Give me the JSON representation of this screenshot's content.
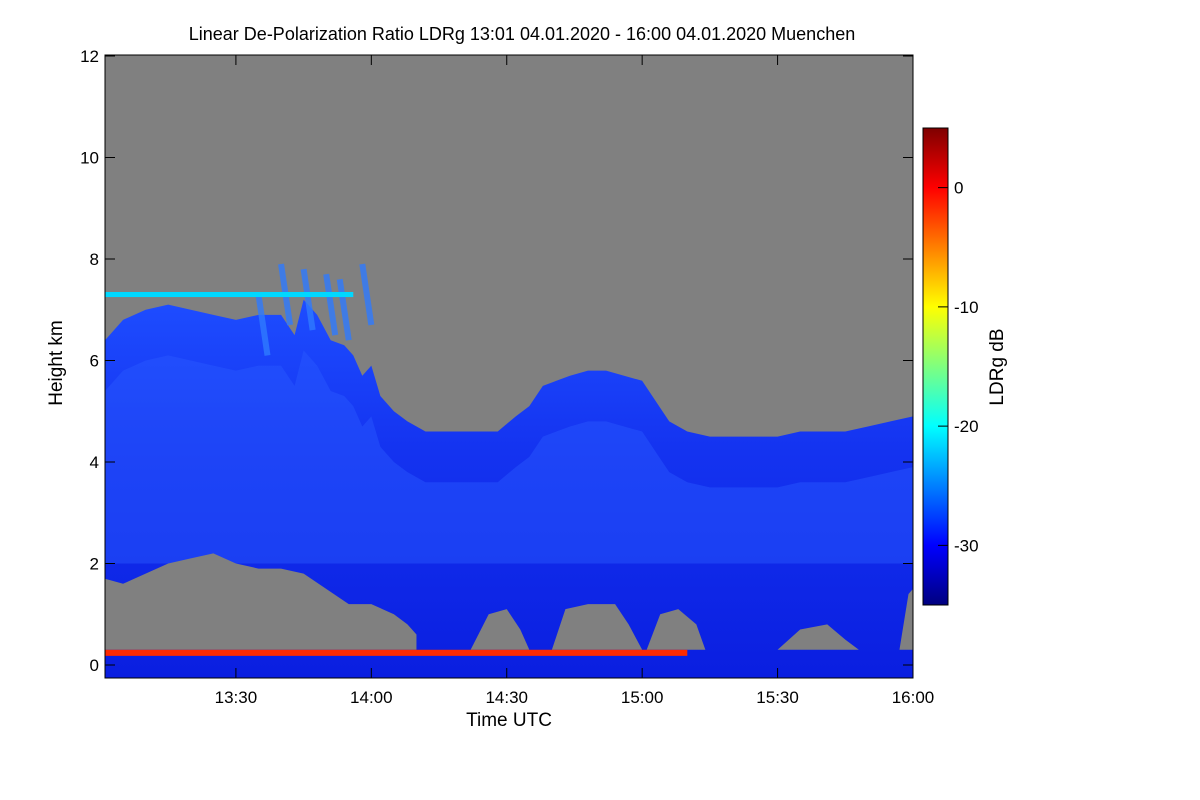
{
  "chart_data": {
    "type": "heatmap",
    "title": "Linear De-Polarization Ratio LDRg   13:01 04.01.2020 - 16:00 04.01.2020 Muenchen",
    "xlabel": "Time UTC",
    "ylabel": "Height km",
    "x_range_minutes_utc": [
      781,
      960
    ],
    "y_range_km": [
      0,
      12
    ],
    "x_ticks": [
      {
        "minute": 810,
        "label": "13:30"
      },
      {
        "minute": 840,
        "label": "14:00"
      },
      {
        "minute": 870,
        "label": "14:30"
      },
      {
        "minute": 900,
        "label": "15:00"
      },
      {
        "minute": 930,
        "label": "15:30"
      },
      {
        "minute": 960,
        "label": "16:00"
      }
    ],
    "y_ticks": [
      0,
      2,
      4,
      6,
      8,
      10,
      12
    ],
    "colorbar": {
      "label": "LDRg dB",
      "range": [
        -35,
        5
      ],
      "ticks": [
        -30,
        -20,
        -10,
        0
      ],
      "colormap": "jet"
    },
    "no_signal_color": "#808080",
    "background_color": "#808080",
    "signal_top_km": [
      [
        781,
        6.4
      ],
      [
        785,
        6.8
      ],
      [
        790,
        7.0
      ],
      [
        795,
        7.1
      ],
      [
        800,
        7.0
      ],
      [
        805,
        6.9
      ],
      [
        810,
        6.8
      ],
      [
        815,
        6.9
      ],
      [
        820,
        6.9
      ],
      [
        823,
        6.5
      ],
      [
        825,
        7.2
      ],
      [
        828,
        6.9
      ],
      [
        831,
        6.4
      ],
      [
        834,
        6.3
      ],
      [
        836,
        6.1
      ],
      [
        838,
        5.7
      ],
      [
        840,
        5.9
      ],
      [
        842,
        5.3
      ],
      [
        845,
        5.0
      ],
      [
        848,
        4.8
      ],
      [
        852,
        4.6
      ],
      [
        856,
        4.6
      ],
      [
        860,
        4.6
      ],
      [
        864,
        4.6
      ],
      [
        868,
        4.6
      ],
      [
        872,
        4.9
      ],
      [
        875,
        5.1
      ],
      [
        878,
        5.5
      ],
      [
        881,
        5.6
      ],
      [
        884,
        5.7
      ],
      [
        888,
        5.8
      ],
      [
        892,
        5.8
      ],
      [
        896,
        5.7
      ],
      [
        900,
        5.6
      ],
      [
        903,
        5.2
      ],
      [
        906,
        4.8
      ],
      [
        910,
        4.6
      ],
      [
        915,
        4.5
      ],
      [
        920,
        4.5
      ],
      [
        925,
        4.5
      ],
      [
        930,
        4.5
      ],
      [
        935,
        4.6
      ],
      [
        940,
        4.6
      ],
      [
        945,
        4.6
      ],
      [
        950,
        4.7
      ],
      [
        955,
        4.8
      ],
      [
        960,
        4.9
      ]
    ],
    "cirrus_fall_streaks_km": [
      [
        815,
        7.3
      ],
      [
        820,
        7.9
      ],
      [
        825,
        7.8
      ],
      [
        830,
        7.7
      ],
      [
        833,
        7.6
      ],
      [
        838,
        7.9
      ]
    ],
    "low_cloud_gray_top_km": [
      [
        781,
        1.7
      ],
      [
        785,
        1.6
      ],
      [
        790,
        1.8
      ],
      [
        795,
        2.0
      ],
      [
        800,
        2.1
      ],
      [
        805,
        2.2
      ],
      [
        810,
        2.0
      ],
      [
        815,
        1.9
      ],
      [
        820,
        1.9
      ],
      [
        825,
        1.8
      ],
      [
        830,
        1.5
      ],
      [
        835,
        1.2
      ],
      [
        840,
        1.2
      ],
      [
        845,
        1.0
      ],
      [
        848,
        0.8
      ],
      [
        850,
        0.6
      ]
    ],
    "low_cloud_gray_patches_km": [
      [
        [
          862,
          0.3
        ],
        [
          866,
          1.0
        ],
        [
          870,
          1.1
        ],
        [
          873,
          0.7
        ],
        [
          875,
          0.3
        ]
      ],
      [
        [
          880,
          0.3
        ],
        [
          883,
          1.1
        ],
        [
          888,
          1.2
        ],
        [
          894,
          1.2
        ],
        [
          897,
          0.8
        ],
        [
          900,
          0.3
        ]
      ],
      [
        [
          901,
          0.3
        ],
        [
          904,
          1.0
        ],
        [
          908,
          1.1
        ],
        [
          912,
          0.8
        ],
        [
          914,
          0.3
        ]
      ],
      [
        [
          930,
          0.3
        ],
        [
          935,
          0.7
        ],
        [
          941,
          0.8
        ],
        [
          945,
          0.5
        ],
        [
          948,
          0.3
        ]
      ],
      [
        [
          957,
          0.3
        ],
        [
          959,
          1.4
        ],
        [
          960,
          1.5
        ],
        [
          960,
          0.3
        ]
      ]
    ],
    "features": [
      {
        "name": "signal layer",
        "height_km": [
          7.25,
          7.35
        ],
        "x_range": [
          781,
          836
        ],
        "ldr_db": -20
      },
      {
        "name": "near-surface layer",
        "height_km": [
          0.18,
          0.3
        ],
        "x_range": [
          781,
          910
        ],
        "ldr_db": -2
      }
    ]
  }
}
